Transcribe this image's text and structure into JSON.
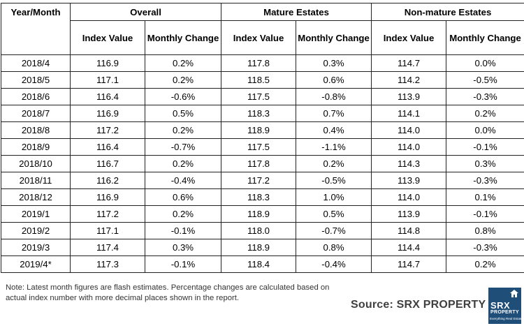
{
  "table": {
    "group_headers": [
      "Year/Month",
      "Overall",
      "Mature Estates",
      "Non-mature Estates"
    ],
    "sub_headers": [
      "Index Value",
      "Monthly Change",
      "Index Value",
      "Monthly Change",
      "Index Value",
      "Monthly Change"
    ],
    "rows": [
      [
        "2018/4",
        "116.9",
        "0.2%",
        "117.8",
        "0.3%",
        "114.7",
        "0.0%"
      ],
      [
        "2018/5",
        "117.1",
        "0.2%",
        "118.5",
        "0.6%",
        "114.2",
        "-0.5%"
      ],
      [
        "2018/6",
        "116.4",
        "-0.6%",
        "117.5",
        "-0.8%",
        "113.9",
        "-0.3%"
      ],
      [
        "2018/7",
        "116.9",
        "0.5%",
        "118.3",
        "0.7%",
        "114.1",
        "0.2%"
      ],
      [
        "2018/8",
        "117.2",
        "0.2%",
        "118.9",
        "0.4%",
        "114.0",
        "0.0%"
      ],
      [
        "2018/9",
        "116.4",
        "-0.7%",
        "117.5",
        "-1.1%",
        "114.0",
        "-0.1%"
      ],
      [
        "2018/10",
        "116.7",
        "0.2%",
        "117.8",
        "0.2%",
        "114.3",
        "0.3%"
      ],
      [
        "2018/11",
        "116.2",
        "-0.4%",
        "117.2",
        "-0.5%",
        "113.9",
        "-0.3%"
      ],
      [
        "2018/12",
        "116.9",
        "0.6%",
        "118.3",
        "1.0%",
        "114.0",
        "0.1%"
      ],
      [
        "2019/1",
        "117.2",
        "0.2%",
        "118.9",
        "0.5%",
        "113.9",
        "-0.1%"
      ],
      [
        "2019/2",
        "117.1",
        "-0.1%",
        "118.0",
        "-0.7%",
        "114.8",
        "0.8%"
      ],
      [
        "2019/3",
        "117.4",
        "0.3%",
        "118.9",
        "0.8%",
        "114.4",
        "-0.3%"
      ],
      [
        "2019/4*",
        "117.3",
        "-0.1%",
        "118.4",
        "-0.4%",
        "114.7",
        "0.2%"
      ]
    ]
  },
  "note": "Note: Latest month figures are flash estimates. Percentage changes are calculated based on actual index number with more decimal places shown in the report.",
  "source": "Source:  SRX PROPERTY",
  "logo": {
    "icon": "house-roof-icon",
    "brand": "SRX",
    "sub": "PROPERTY",
    "tagline": "Everything Real Estate",
    "bg_color": "#1f4e79"
  }
}
